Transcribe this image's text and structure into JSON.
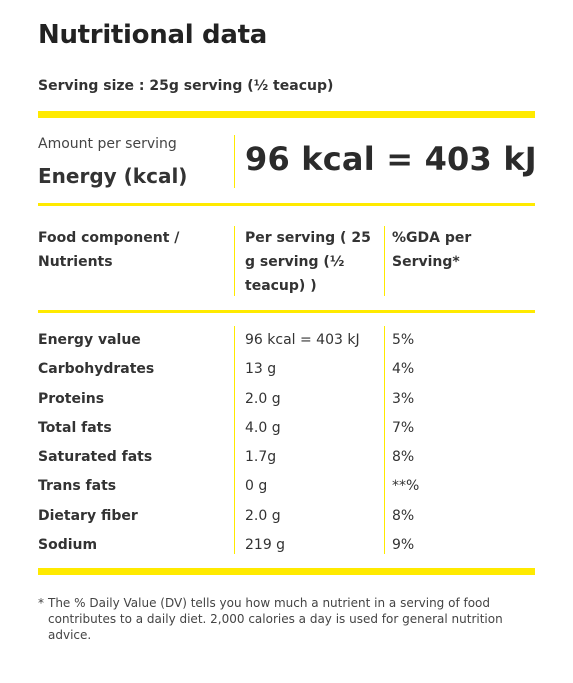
{
  "title": "Nutritional data",
  "serving_size": "Serving size : 25g serving (½ teacup)",
  "amount_per_serving": "Amount per serving",
  "energy_label": "Energy (kcal)",
  "energy_value": "96 kcal = 403 kJ",
  "headers": {
    "component": "Food component / Nutrients",
    "per_serving": "Per serving ( 25 g serving (½ teacup) )",
    "gda": "%GDA per Serving*"
  },
  "rows": [
    {
      "name": "Energy value",
      "value": "96 kcal = 403 kJ",
      "gda": "5%"
    },
    {
      "name": "Carbohydrates",
      "value": "13 g",
      "gda": "4%"
    },
    {
      "name": "Proteins",
      "value": "2.0 g",
      "gda": "3%"
    },
    {
      "name": "Total fats",
      "value": "4.0 g",
      "gda": "7%"
    },
    {
      "name": "Saturated fats",
      "value": "1.7g",
      "gda": "8%"
    },
    {
      "name": "Trans fats",
      "value": "0 g",
      "gda": "**%"
    },
    {
      "name": "Dietary fiber",
      "value": "2.0 g",
      "gda": "8%"
    },
    {
      "name": "Sodium",
      "value": "219 g",
      "gda": "9%"
    }
  ],
  "footnote_marker": "*",
  "footnote": "The % Daily Value (DV) tells you how much a nutrient in a serving of food contributes to a daily diet. 2,000 calories a day is used for general nutrition advice.",
  "colors": {
    "accent": "#ffea00"
  }
}
